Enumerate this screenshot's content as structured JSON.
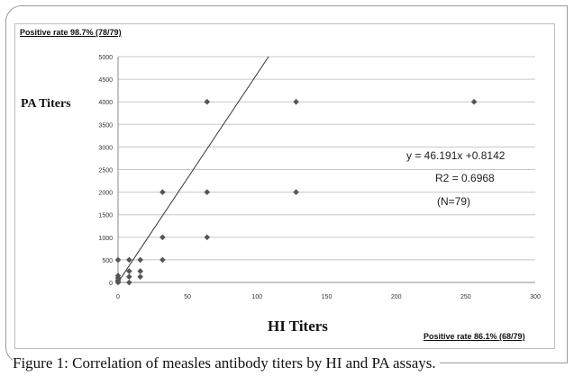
{
  "chart_data": {
    "type": "scatter",
    "title": "",
    "xlabel": "HI Titers",
    "ylabel": "PA Titers",
    "xlim": [
      0,
      300
    ],
    "ylim": [
      0,
      5000
    ],
    "x_ticks": [
      0,
      50,
      100,
      150,
      200,
      250,
      300
    ],
    "y_ticks": [
      0,
      500,
      1000,
      1500,
      2000,
      2500,
      3000,
      3500,
      4000,
      4500,
      5000
    ],
    "grid": "horizontal",
    "points": [
      {
        "x": 0,
        "y": 0
      },
      {
        "x": 0,
        "y": 20
      },
      {
        "x": 0,
        "y": 50
      },
      {
        "x": 0,
        "y": 100
      },
      {
        "x": 0,
        "y": 150
      },
      {
        "x": 0,
        "y": 500
      },
      {
        "x": 8,
        "y": 0
      },
      {
        "x": 8,
        "y": 125
      },
      {
        "x": 8,
        "y": 250
      },
      {
        "x": 8,
        "y": 500
      },
      {
        "x": 16,
        "y": 125
      },
      {
        "x": 16,
        "y": 250
      },
      {
        "x": 16,
        "y": 500
      },
      {
        "x": 32,
        "y": 500
      },
      {
        "x": 32,
        "y": 1000
      },
      {
        "x": 32,
        "y": 2000
      },
      {
        "x": 64,
        "y": 1000
      },
      {
        "x": 64,
        "y": 2000
      },
      {
        "x": 64,
        "y": 4000
      },
      {
        "x": 128,
        "y": 2000
      },
      {
        "x": 128,
        "y": 4000
      },
      {
        "x": 256,
        "y": 4000
      }
    ],
    "trendline": {
      "slope": 46.191,
      "intercept": 0.8142
    }
  },
  "annotations": {
    "positive_pa": "Positive rate 98.7% (78/79)",
    "positive_hi": "Positive rate 86.1% (68/79)",
    "equation": "y = 46.191x +0.8142",
    "r2": "R2 = 0.6968",
    "n": "(N=79)"
  },
  "caption": "Figure 1: Correlation of measles antibody titers by HI and PA assays."
}
